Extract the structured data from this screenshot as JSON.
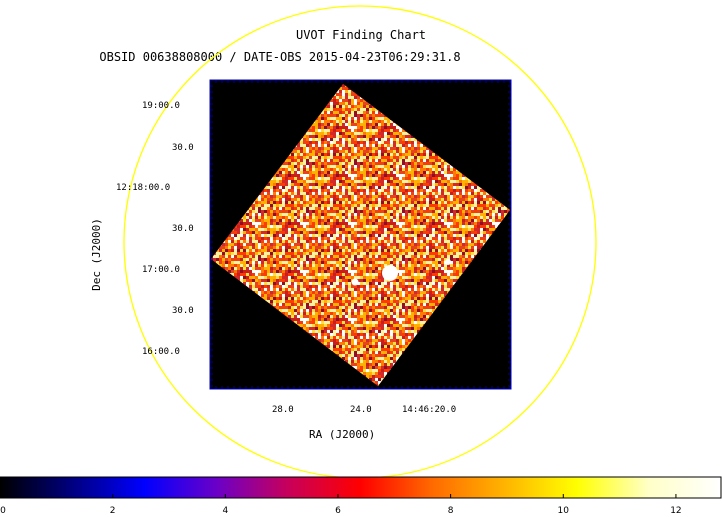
{
  "header": {
    "title": "UVOT Finding Chart",
    "subtitle": "OBSID 00638808000 / DATE-OBS 2015-04-23T06:29:31.8"
  },
  "axes": {
    "xlabel": "RA (J2000)",
    "ylabel": "Dec (J2000)",
    "dec_ticks": [
      "19:00.0",
      "30.0",
      "12:18:00.0",
      "30.0",
      "17:00.0",
      "30.0",
      "16:00.0"
    ],
    "ra_ticks": [
      "28.0",
      "24.0",
      "14:46:20.0"
    ]
  },
  "colorbar": {
    "ticks": [
      "0",
      "2",
      "4",
      "6",
      "8",
      "10",
      "12"
    ],
    "range": [
      0,
      12.8
    ],
    "colormap": [
      "#000000",
      "#000080",
      "#0000ff",
      "#6a00c8",
      "#c8005a",
      "#ff0000",
      "#ff6a00",
      "#ffb400",
      "#ffff00",
      "#ffffc8",
      "#ffffff"
    ]
  },
  "colors": {
    "circle": "#ffff00",
    "frame": "#0000cc",
    "image_bg": "#000000"
  }
}
